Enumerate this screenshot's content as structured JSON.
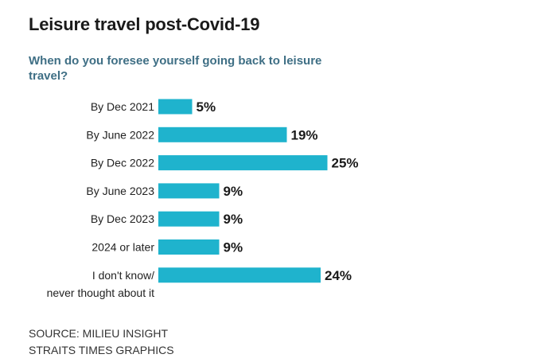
{
  "title": "Leisure travel post-Covid-19",
  "subtitle": "When do you foresee yourself going back to leisure travel?",
  "source": {
    "line1": "SOURCE: MILIEU INSIGHT",
    "line2": "STRAITS TIMES GRAPHICS"
  },
  "colors": {
    "bar": "#1fb3cd",
    "subtitle": "#3f6f85"
  },
  "chart_data": {
    "type": "bar",
    "orientation": "horizontal",
    "categories": [
      [
        "By Dec 2021"
      ],
      [
        "By June 2022"
      ],
      [
        "By Dec 2022"
      ],
      [
        "By June 2023"
      ],
      [
        "By Dec 2023"
      ],
      [
        "2024 or later"
      ],
      [
        "I don't know/",
        "never thought about it"
      ]
    ],
    "values": [
      5,
      19,
      25,
      9,
      9,
      9,
      24
    ],
    "labels": [
      "5%",
      "19%",
      "25%",
      "9%",
      "9%",
      "9%",
      "24%"
    ],
    "title": "Leisure travel post-Covid-19",
    "xlabel": "",
    "ylabel": "",
    "grid": false,
    "legend": "none"
  }
}
